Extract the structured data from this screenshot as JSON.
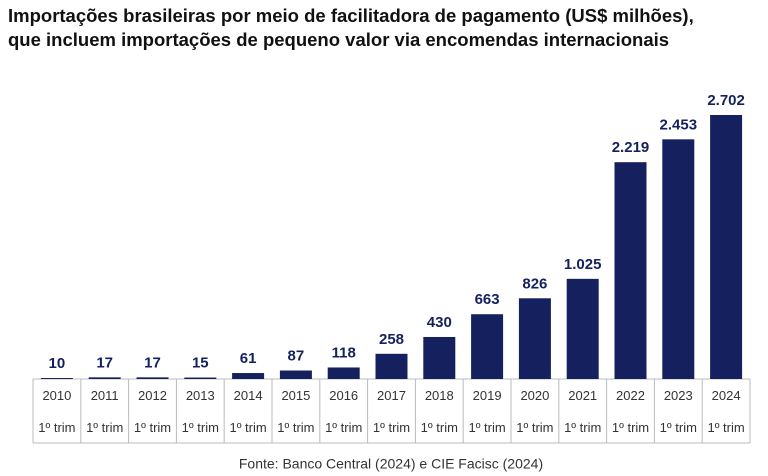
{
  "chart_data": {
    "type": "bar",
    "title": [
      "Importações brasileiras por meio de facilitadora de pagamento (US$ milhões),",
      "que incluem importações de pequeno valor via encomendas internacionais"
    ],
    "categories": [
      "2010",
      "2011",
      "2012",
      "2013",
      "2014",
      "2015",
      "2016",
      "2017",
      "2018",
      "2019",
      "2020",
      "2021",
      "2022",
      "2023",
      "2024"
    ],
    "sublabels": [
      "1º trim",
      "1º trim",
      "1º trim",
      "1º trim",
      "1º trim",
      "1º trim",
      "1º trim",
      "1º trim",
      "1º trim",
      "1º trim",
      "1º trim",
      "1º trim",
      "1º trim",
      "1º trim",
      "1º trim"
    ],
    "values": [
      10,
      17,
      17,
      15,
      61,
      87,
      118,
      258,
      430,
      663,
      826,
      1025,
      2219,
      2453,
      2702
    ],
    "value_labels": [
      "10",
      "17",
      "17",
      "15",
      "61",
      "87",
      "118",
      "258",
      "430",
      "663",
      "826",
      "1.025",
      "2.219",
      "2.453",
      "2.702"
    ],
    "color": "#14215e",
    "source": "Fonte: Banco Central (2024) e CIE Facisc (2024)"
  }
}
